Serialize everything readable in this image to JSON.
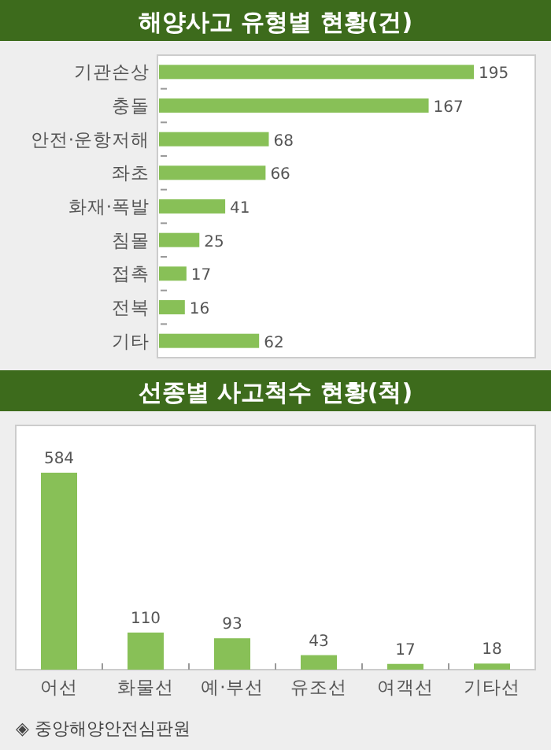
{
  "chart_data": [
    {
      "type": "bar",
      "orientation": "horizontal",
      "title": "해양사고 유형별 현황(건)",
      "categories": [
        "기관손상",
        "충돌",
        "안전·운항저해",
        "좌초",
        "화재·폭발",
        "침몰",
        "접촉",
        "전복",
        "기타"
      ],
      "values": [
        195,
        167,
        68,
        66,
        41,
        25,
        17,
        16,
        62
      ],
      "color": "#88c057",
      "data_labels": true
    },
    {
      "type": "bar",
      "title": "선종별 사고척수 현황(척)",
      "categories": [
        "어선",
        "화물선",
        "예·부선",
        "유조선",
        "여객선",
        "기타선"
      ],
      "values": [
        584,
        110,
        93,
        43,
        17,
        18
      ],
      "color": "#88c057",
      "data_labels": true,
      "annotations": [
        "◈ 중앙해양안전심판원"
      ]
    }
  ]
}
